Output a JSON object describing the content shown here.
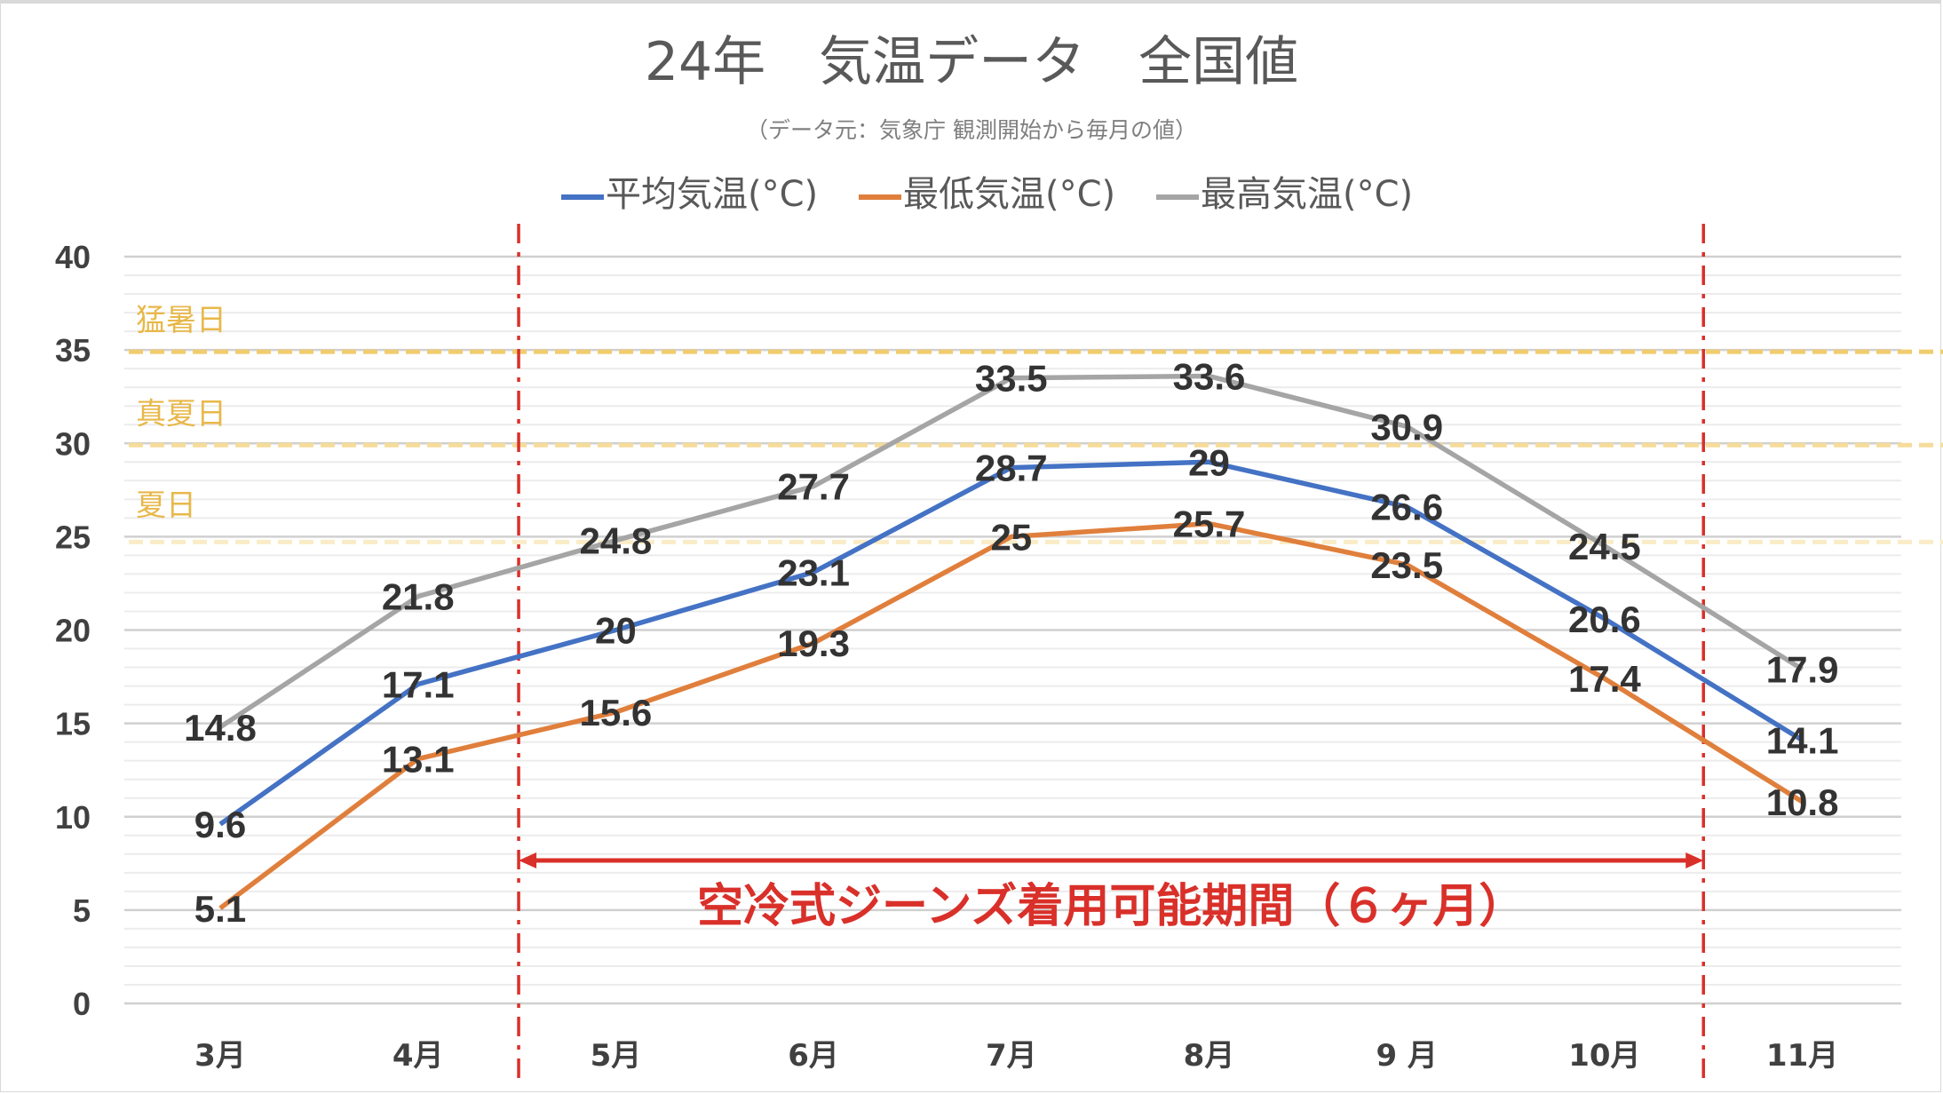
{
  "chart_data": {
    "type": "line",
    "title": "24年　気温データ　全国値",
    "subtitle": "（データ元：気象庁 観測開始から毎月の値）",
    "xlabel": "",
    "ylabel": "",
    "ylim": [
      0,
      40
    ],
    "yticks": [
      "0",
      "5",
      "10",
      "15",
      "20",
      "25",
      "30",
      "35",
      "40"
    ],
    "grid": true,
    "legend_position": "top",
    "categories": [
      "3月",
      "4月",
      "5月",
      "6月",
      "7月",
      "8月",
      "9 月",
      "10月",
      "11月"
    ],
    "series": [
      {
        "name": "平均気温(°C)",
        "color": "#4472c4",
        "values": [
          9.6,
          17.1,
          20,
          23.1,
          28.7,
          29,
          26.6,
          20.6,
          14.1
        ]
      },
      {
        "name": "最低気温(°C)",
        "color": "#e07f3c",
        "values": [
          5.1,
          13.1,
          15.6,
          19.3,
          25,
          25.7,
          23.5,
          17.4,
          10.8
        ]
      },
      {
        "name": "最高気温(°C)",
        "color": "#a5a5a5",
        "values": [
          14.8,
          21.8,
          24.8,
          27.7,
          33.5,
          33.6,
          30.9,
          24.5,
          17.9
        ]
      }
    ],
    "thresholds": [
      {
        "label": "猛暑日",
        "value": 35,
        "color": "#f0cc6e",
        "text_color": "#e8b84a"
      },
      {
        "label": "真夏日",
        "value": 30,
        "color": "#f5dc9a",
        "text_color": "#e8b84a"
      },
      {
        "label": "夏日",
        "value": 25,
        "color": "#faecc6",
        "text_color": "#e8b84a"
      }
    ],
    "annotation": {
      "label": "空冷式ジーンズ着用可能期間（６ヶ月）",
      "start_category": "5月",
      "end_category": "10月",
      "color": "#d9302a"
    }
  }
}
